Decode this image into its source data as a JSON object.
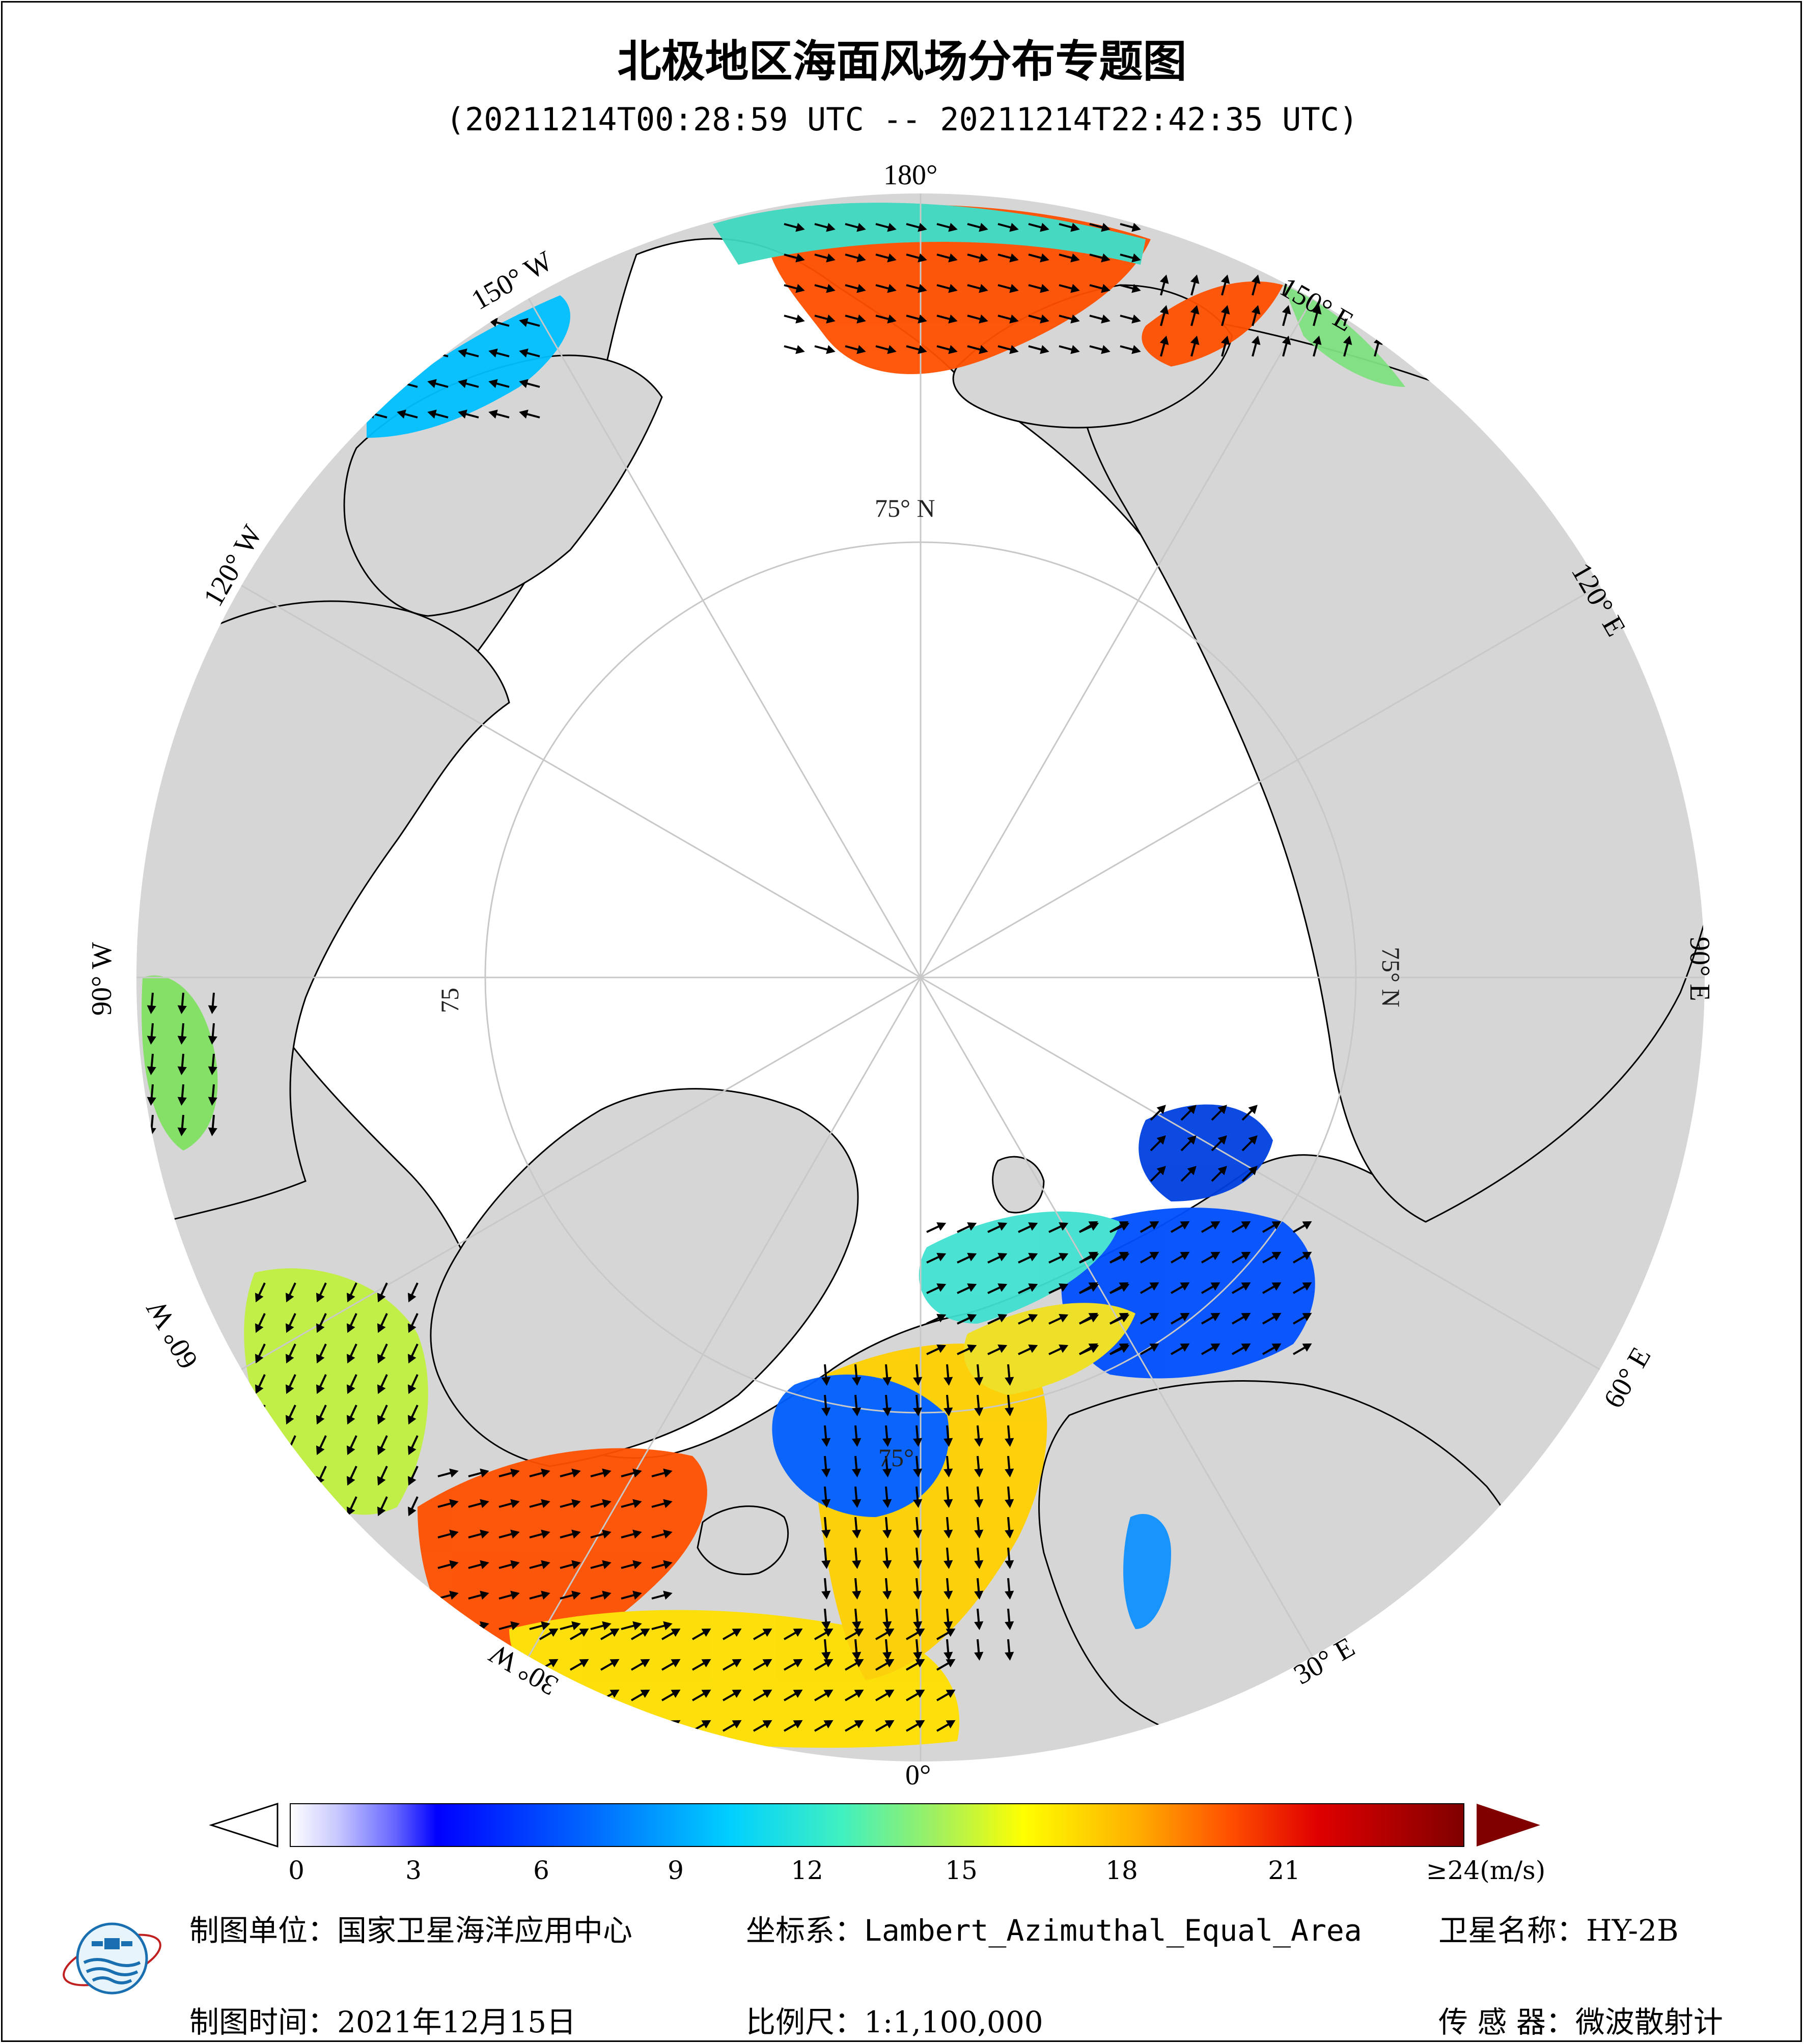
{
  "header": {
    "title": "北极地区海面风场分布专题图",
    "time_range": "(20211214T00:28:59 UTC -- 20211214T22:42:35 UTC)"
  },
  "map": {
    "projection_view": "north polar",
    "lon_labels": {
      "l180": "180°",
      "l150e": "150° E",
      "l120e": "120° E",
      "l90e": "90° E",
      "l60e": "60° E",
      "l30e": "30° E",
      "l0": "0°",
      "l30w": "30° W",
      "l60w": "60° W",
      "l90w": "90° W",
      "l120w": "120° W",
      "l150w": "150° W"
    },
    "lat_labels": {
      "top": "75° N",
      "right": "75° N",
      "left": "75",
      "bottom": "75°"
    },
    "colors": {
      "ocean": "#d6d6d6",
      "land_ice": "#ffffff",
      "arrows": "#000000"
    }
  },
  "colorbar": {
    "unit_label": "≥24(m/s)",
    "ticks": [
      "0",
      "3",
      "6",
      "9",
      "12",
      "15",
      "18",
      "21"
    ],
    "range": [
      0,
      24
    ],
    "colors": [
      "#ffffff",
      "#c8c8ff",
      "#6464ff",
      "#0000ff",
      "#0064ff",
      "#00c8ff",
      "#40f0c0",
      "#a0f060",
      "#ffff00",
      "#ffb000",
      "#ff5000",
      "#e00000",
      "#800000"
    ]
  },
  "footer": {
    "org": "制图单位：国家卫星海洋应用中心",
    "crs": "坐标系：Lambert_Azimuthal_Equal_Area",
    "satellite": "卫星名称：HY-2B",
    "date": "制图时间：2021年12月15日",
    "scale": "比例尺：1:1,100,000",
    "sensor": "传 感 器：微波散射计"
  }
}
